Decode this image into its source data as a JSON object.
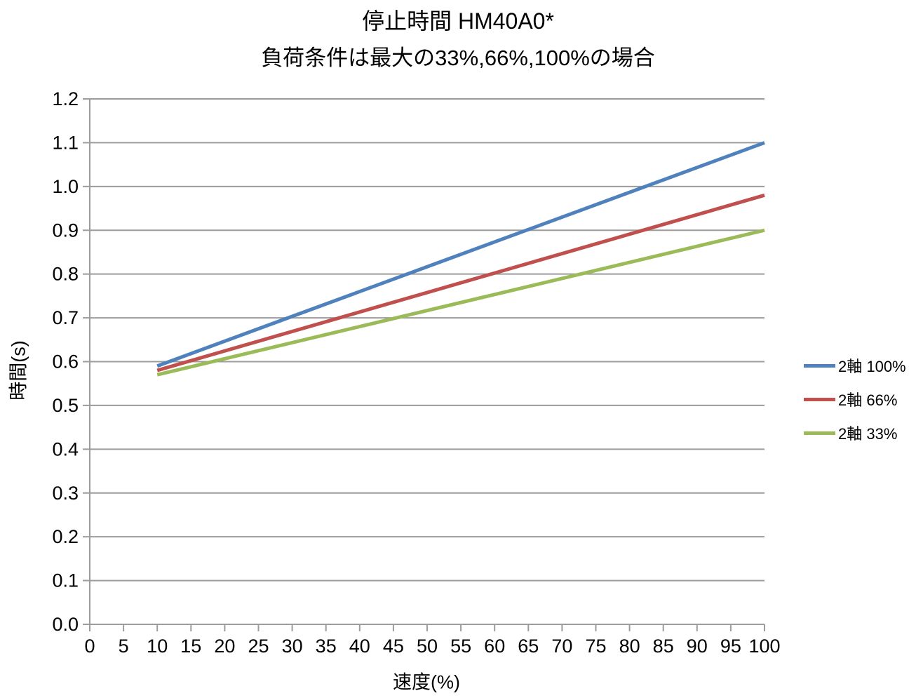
{
  "chart_data": {
    "type": "line",
    "title": "停止時間 HM40A0*",
    "subtitle": "負荷条件は最大の33%,66%,100%の場合",
    "xlabel": "速度(%)",
    "ylabel": "時間(s)",
    "xlim": [
      0,
      100
    ],
    "ylim": [
      0.0,
      1.2
    ],
    "x_ticks": [
      0,
      5,
      10,
      15,
      20,
      25,
      30,
      35,
      40,
      45,
      50,
      55,
      60,
      65,
      70,
      75,
      80,
      85,
      90,
      95,
      100
    ],
    "y_ticks": [
      0.0,
      0.1,
      0.2,
      0.3,
      0.4,
      0.5,
      0.6,
      0.7,
      0.8,
      0.9,
      1.0,
      1.1,
      1.2
    ],
    "grid": "horizontal",
    "legend_position": "right",
    "series": [
      {
        "name": "2軸 100%",
        "color": "#4F81BD",
        "points": [
          [
            10,
            0.59
          ],
          [
            100,
            1.1
          ]
        ]
      },
      {
        "name": "2軸 66%",
        "color": "#C0504D",
        "points": [
          [
            10,
            0.58
          ],
          [
            100,
            0.98
          ]
        ]
      },
      {
        "name": "2軸 33%",
        "color": "#9BBB59",
        "points": [
          [
            10,
            0.57
          ],
          [
            100,
            0.9
          ]
        ]
      }
    ]
  },
  "style": {
    "axis_color": "#9C9C9C",
    "gridline_color": "#9C9C9C",
    "text_color": "#000000",
    "background": "#FFFFFF"
  }
}
